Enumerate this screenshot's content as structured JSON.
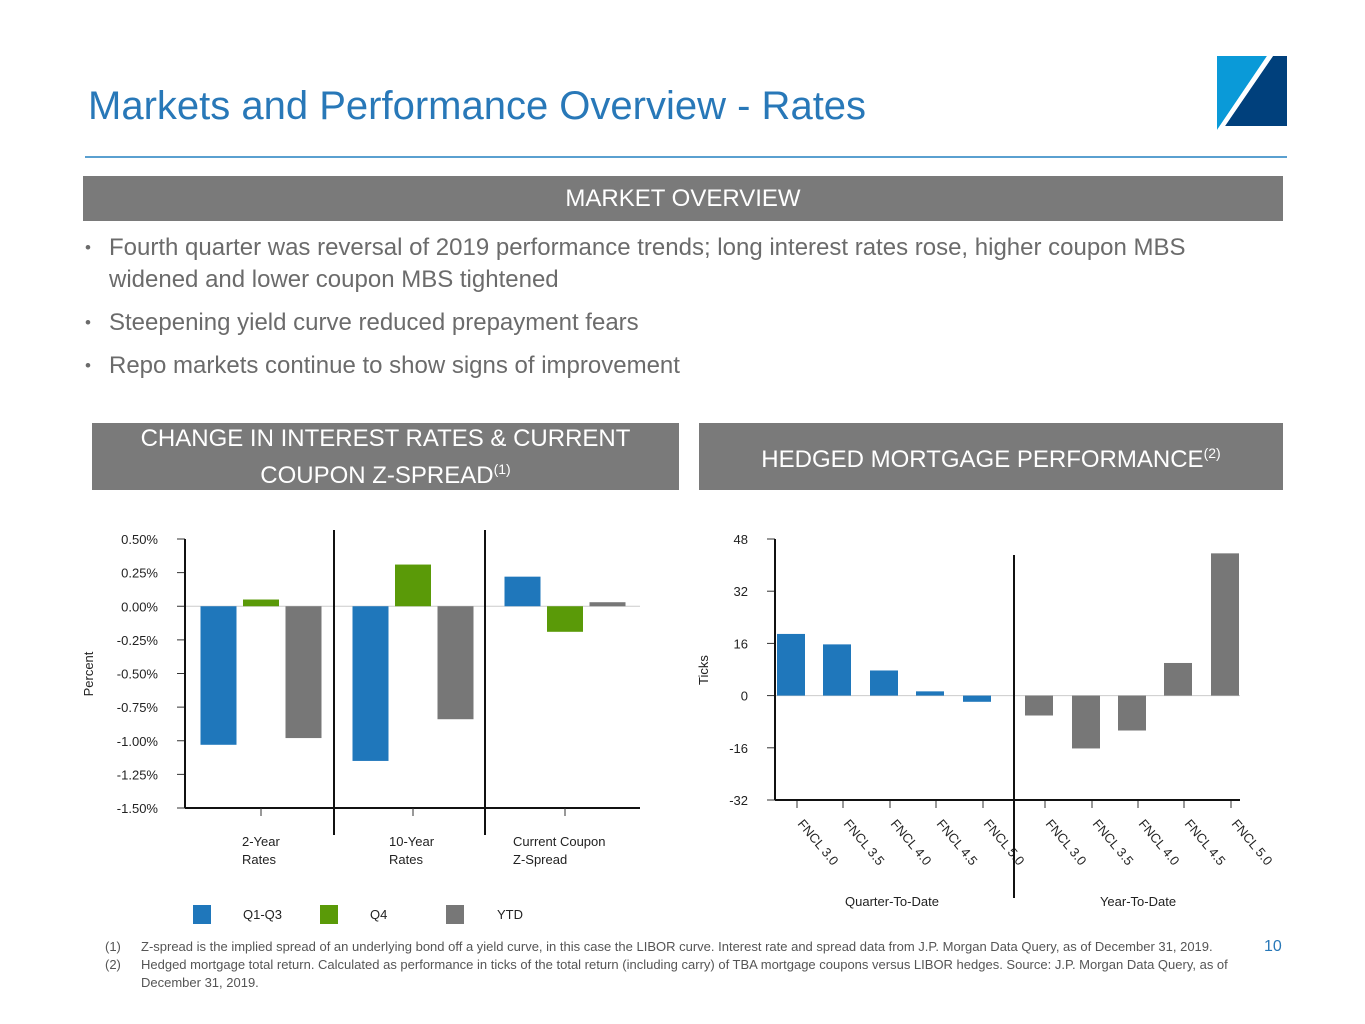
{
  "title": "Markets and Performance Overview - Rates",
  "overview_header": "MARKET OVERVIEW",
  "bullets": [
    "Fourth quarter was reversal of 2019 performance trends; long interest rates rose, higher coupon MBS widened and lower coupon MBS tightened",
    "Steepening yield curve reduced prepayment fears",
    "Repo markets continue to show signs of improvement"
  ],
  "left_header": {
    "text": "CHANGE IN INTEREST RATES & CURRENT COUPON Z-SPREAD",
    "sup": "(1)"
  },
  "right_header": {
    "text": "HEDGED MORTGAGE PERFORMANCE",
    "sup": "(2)"
  },
  "colors": {
    "title": "#2878b8",
    "band": "#7a7a7a",
    "blue": "#1f77bb",
    "green": "#5a9a08",
    "gray": "#777777"
  },
  "chart_data": [
    {
      "type": "bar",
      "ylabel": "Percent",
      "ylim": [
        -1.5,
        0.5
      ],
      "yticks": [
        "0.50%",
        "0.25%",
        "0.00%",
        "-0.25%",
        "-0.50%",
        "-0.75%",
        "-1.00%",
        "-1.25%",
        "-1.50%"
      ],
      "categories": [
        [
          "2-Year",
          "Rates"
        ],
        [
          "10-Year",
          "Rates"
        ],
        [
          "Current Coupon",
          "Z-Spread"
        ]
      ],
      "series": [
        {
          "name": "Q1-Q3",
          "color": "#1f77bb",
          "values": [
            -1.03,
            -1.15,
            0.22
          ]
        },
        {
          "name": "Q4",
          "color": "#5a9a08",
          "values": [
            0.05,
            0.31,
            -0.19
          ]
        },
        {
          "name": "YTD",
          "color": "#777777",
          "values": [
            -0.98,
            -0.84,
            0.03
          ]
        }
      ],
      "legend": "bottom"
    },
    {
      "type": "bar",
      "ylabel": "Ticks",
      "ylim": [
        -32,
        48
      ],
      "yticks": [
        "48",
        "32",
        "16",
        "0",
        "-16",
        "-32"
      ],
      "groups": [
        {
          "name": "Quarter-To-Date",
          "color": "#1f77bb",
          "categories": [
            "FNCL 3.0",
            "FNCL 3.5",
            "FNCL 4.0",
            "FNCL 4.5",
            "FNCL 5.0"
          ],
          "values": [
            18.9,
            15.7,
            7.7,
            1.3,
            -1.9
          ]
        },
        {
          "name": "Year-To-Date",
          "color": "#777777",
          "categories": [
            "FNCL 3.0",
            "FNCL 3.5",
            "FNCL 4.0",
            "FNCL 4.5",
            "FNCL 5.0"
          ],
          "values": [
            -6.1,
            -16.2,
            -10.7,
            10.0,
            43.6
          ]
        }
      ]
    }
  ],
  "footnotes": [
    {
      "num": "(1)",
      "text": "Z-spread is the implied spread of an underlying bond off a yield curve, in this case the LIBOR curve. Interest rate and spread data from J.P. Morgan Data Query, as of December 31, 2019."
    },
    {
      "num": "(2)",
      "text": "Hedged mortgage total return.  Calculated as performance in ticks of the total return (including carry) of TBA mortgage coupons versus LIBOR hedges. Source: J.P. Morgan Data Query, as of December 31, 2019."
    }
  ],
  "page_number": "10"
}
